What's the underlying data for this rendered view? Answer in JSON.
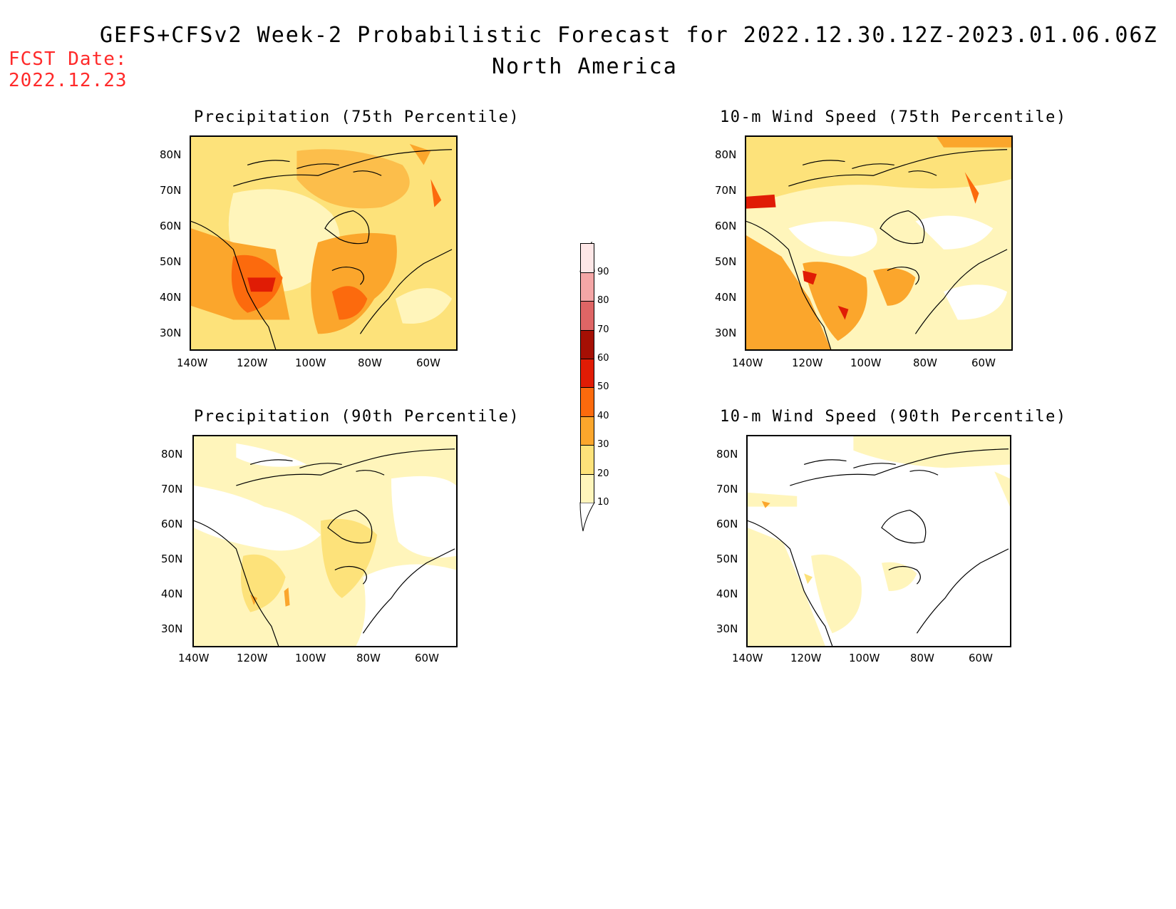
{
  "header": {
    "title_line1": "GEFS+CFSv2 Week-2 Probabilistic Forecast for 2022.12.30.12Z-2023.01.06.06Z",
    "title_line2": "North America",
    "fcst_label": "FCST Date:",
    "fcst_date": "2022.12.23"
  },
  "legend": {
    "levels": [
      "10",
      "20",
      "30",
      "40",
      "50",
      "60",
      "70",
      "80",
      "90"
    ],
    "colors": [
      "#fff5bb",
      "#fde27a",
      "#fba62c",
      "#fc6a0d",
      "#e01c05",
      "#a50f04",
      "#de6565",
      "#f4a6a6",
      "#fde6e6"
    ]
  },
  "panels": [
    {
      "title": "Precipitation (75th Percentile)",
      "lat_labels": [
        "80N",
        "70N",
        "60N",
        "50N",
        "40N",
        "30N"
      ],
      "lon_labels": [
        "140W",
        "120W",
        "100W",
        "80W",
        "60W"
      ]
    },
    {
      "title": "10-m Wind Speed (75th Percentile)",
      "lat_labels": [
        "80N",
        "70N",
        "60N",
        "50N",
        "40N",
        "30N"
      ],
      "lon_labels": [
        "140W",
        "120W",
        "100W",
        "80W",
        "60W"
      ]
    },
    {
      "title": "Precipitation (90th Percentile)",
      "lat_labels": [
        "80N",
        "70N",
        "60N",
        "50N",
        "40N",
        "30N"
      ],
      "lon_labels": [
        "140W",
        "120W",
        "100W",
        "80W",
        "60W"
      ]
    },
    {
      "title": "10-m Wind Speed (90th Percentile)",
      "lat_labels": [
        "80N",
        "70N",
        "60N",
        "50N",
        "40N",
        "30N"
      ],
      "lon_labels": [
        "140W",
        "120W",
        "100W",
        "80W",
        "60W"
      ]
    }
  ]
}
